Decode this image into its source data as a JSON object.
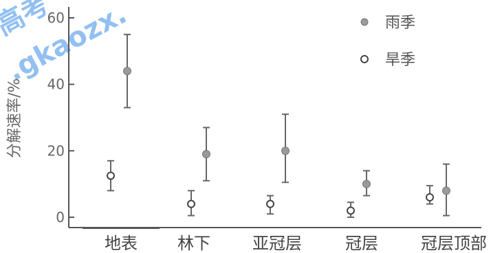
{
  "chart_data": {
    "type": "scatter",
    "title": "",
    "xlabel": "",
    "ylabel": "分解速率/%",
    "ylim": [
      0,
      60
    ],
    "yticks": [
      0,
      20,
      40,
      60
    ],
    "grid": false,
    "legend_position": "top-right",
    "categories": [
      "地表",
      "林下",
      "亚冠层",
      "冠层",
      "冠层顶部"
    ],
    "series": [
      {
        "name": "雨季",
        "marker": "filled",
        "color": "#9a9a9a",
        "values": [
          44,
          19,
          20,
          10,
          8
        ],
        "err_low": [
          33,
          11,
          10.5,
          6.5,
          0.5
        ],
        "err_high": [
          55,
          27,
          31,
          14,
          16
        ]
      },
      {
        "name": "旱季",
        "marker": "open",
        "color": "#444444",
        "values": [
          12.5,
          4,
          4,
          2,
          6
        ],
        "err_low": [
          8,
          0.5,
          1,
          0,
          4
        ],
        "err_high": [
          17,
          8,
          6.5,
          4.5,
          9.5
        ]
      }
    ]
  },
  "watermark": {
    "line1": "高考",
    "line2": ".gkaozx."
  }
}
